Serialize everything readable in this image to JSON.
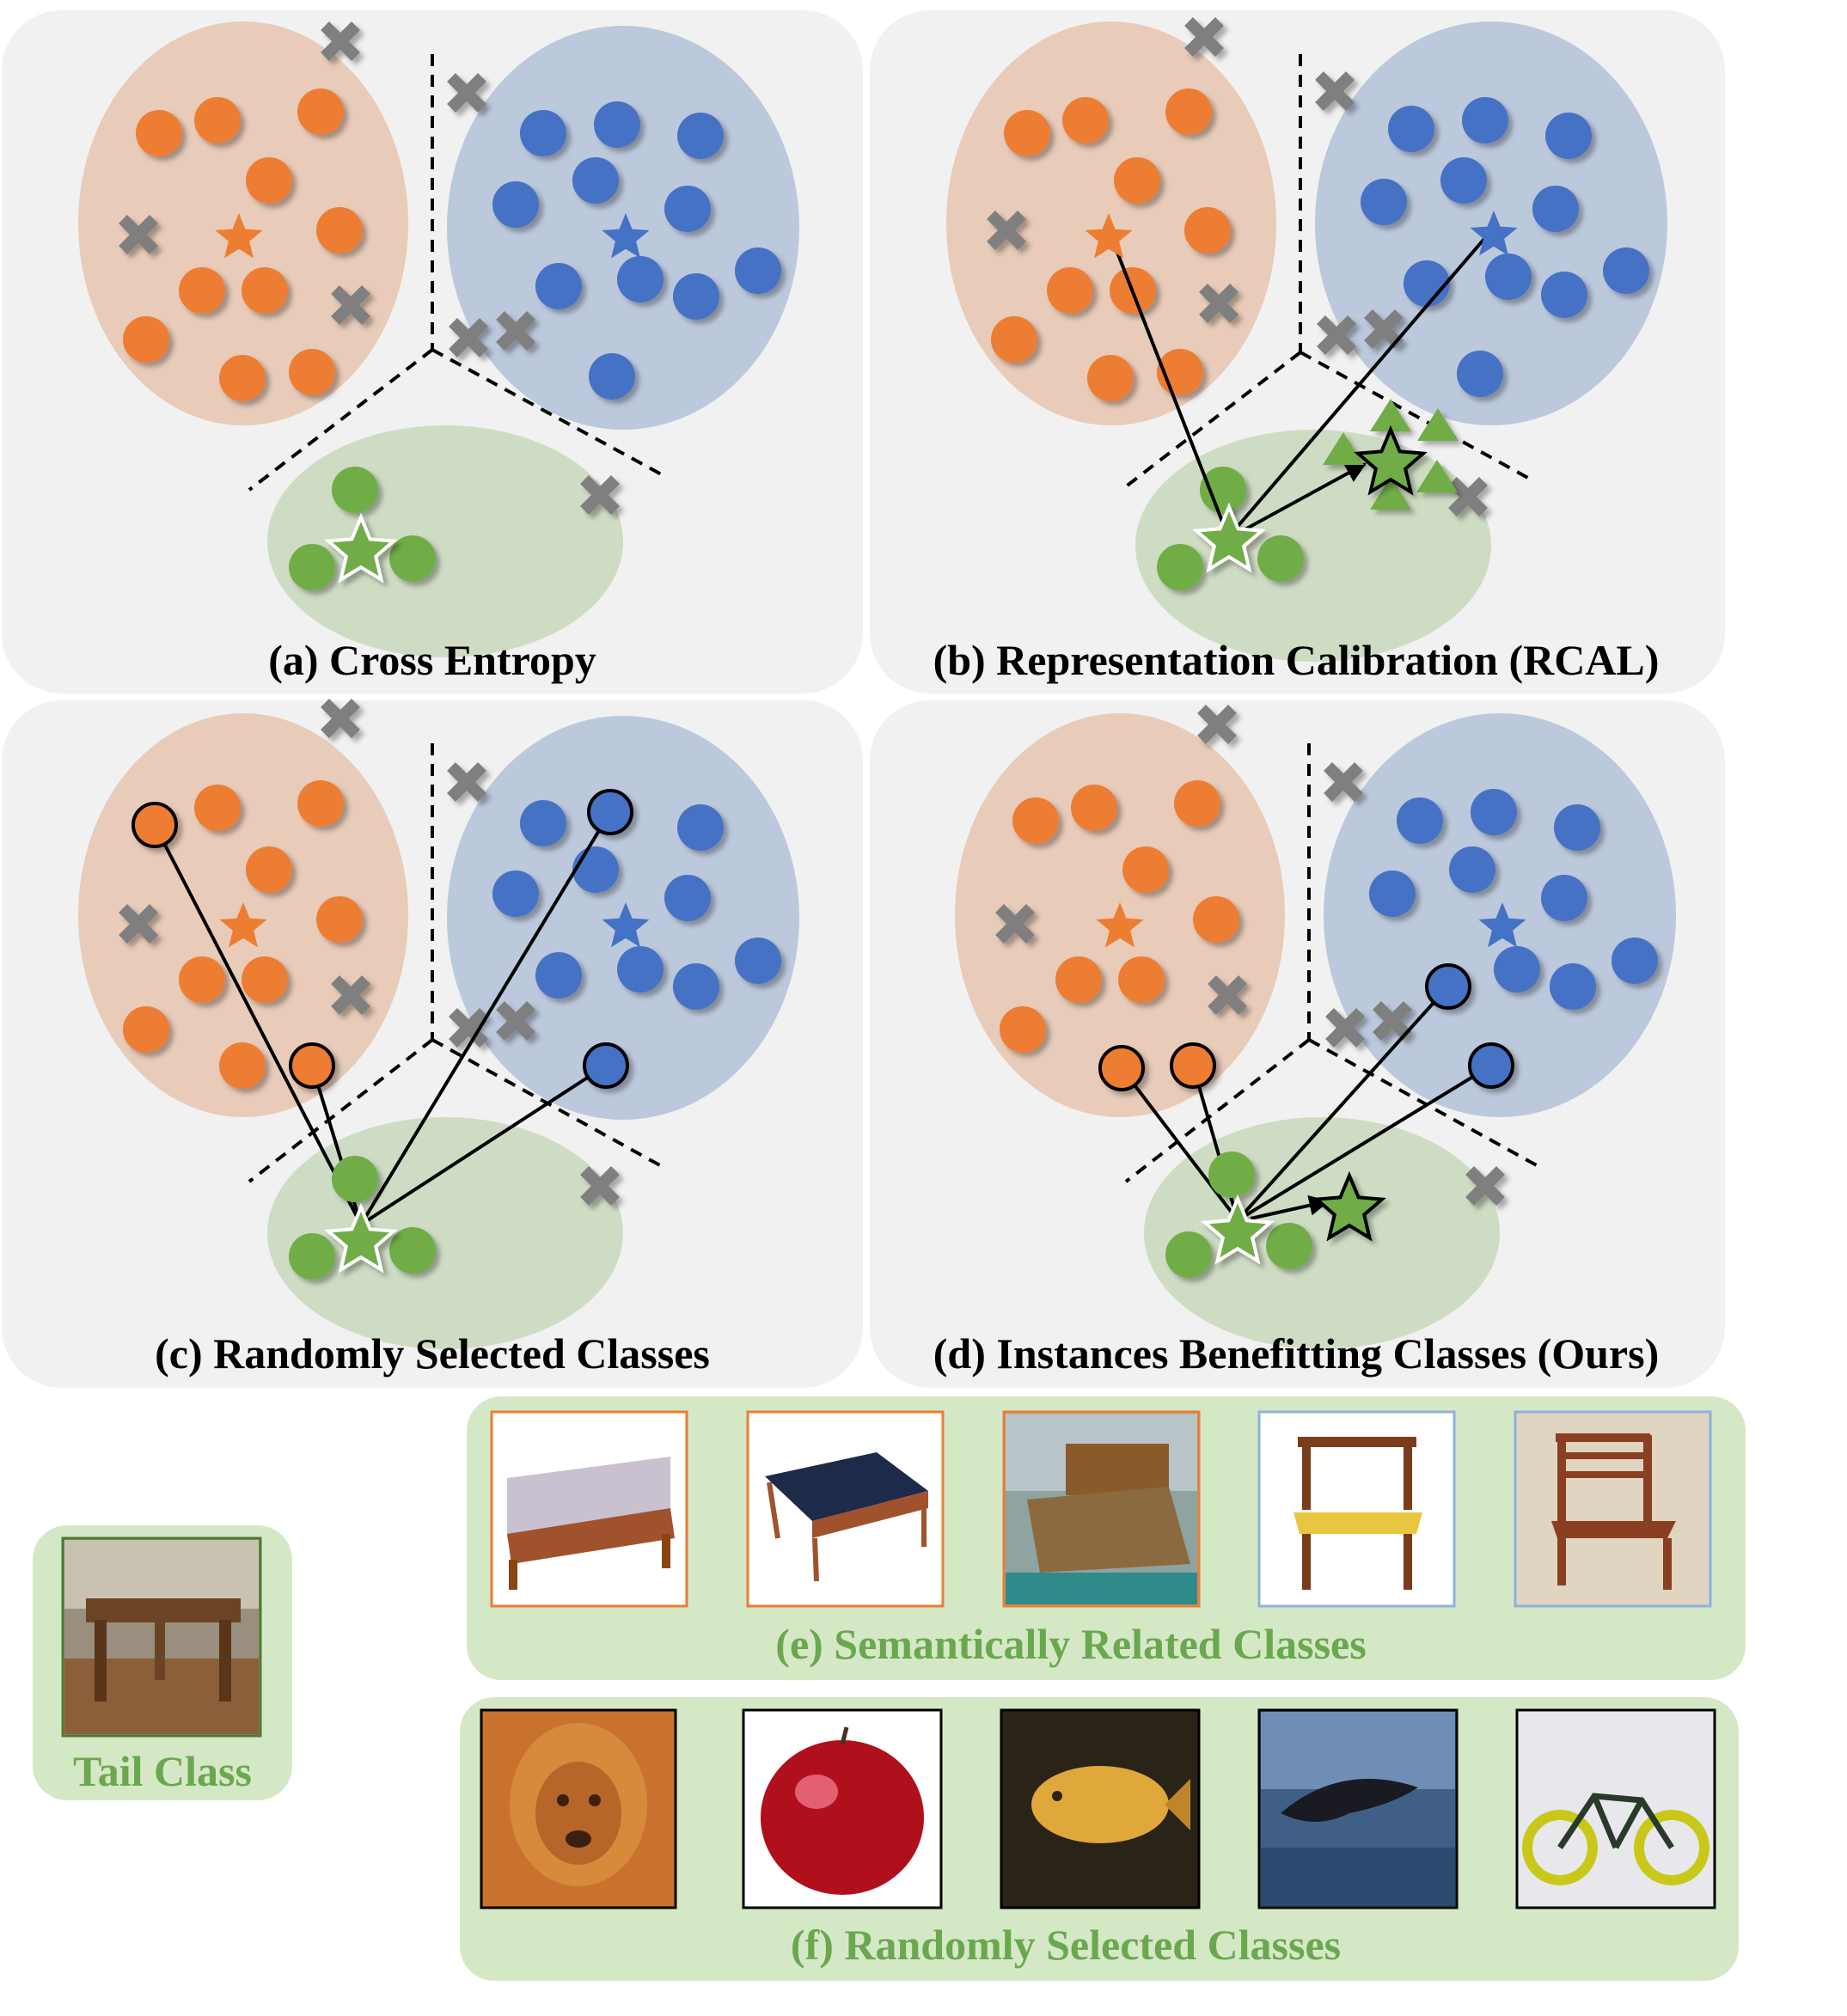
{
  "panels": [
    {
      "caption": "(a) Cross Entropy"
    },
    {
      "caption": "(b) Representation Calibration (RCAL)"
    },
    {
      "caption": "(c) Randomly Selected Classes"
    },
    {
      "caption": "(d) Instances Benefitting Classes (Ours)"
    }
  ],
  "tail_class": {
    "label": "Tail Class",
    "image": "wooden-table-photo"
  },
  "semantic_group": {
    "label": "(e) Semantically Related Classes",
    "images": [
      "bed-photo",
      "bed-photo",
      "bed-photo",
      "chair-photo",
      "chair-photo"
    ]
  },
  "random_group": {
    "label": "(f) Randomly Selected Classes",
    "images": [
      "lion-photo",
      "apple-photo",
      "fish-photo",
      "dolphin-photo",
      "bicycle-photo"
    ]
  },
  "colors": {
    "panel_bg": "#f1f1f1",
    "orange_class": "#ed7d31",
    "orange_region": "#e8cbb9",
    "blue_class": "#4472c4",
    "blue_region": "#bcc8dc",
    "green_class": "#70ad47",
    "green_region": "#cfdcc4",
    "noise_cross": "#7f7f7f",
    "bottom_box": "#d5e8c6",
    "green_text": "#6aa84f"
  }
}
